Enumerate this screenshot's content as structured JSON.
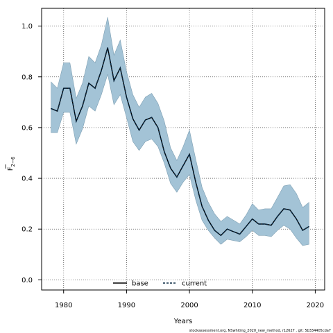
{
  "chart_data": {
    "type": "line",
    "xlabel": "Years",
    "ylabel_main": "F",
    "ylabel_sub": "2−6",
    "xlim": [
      1976.5,
      2021.5
    ],
    "ylim": [
      -0.04,
      1.07
    ],
    "x_ticks": [
      1980,
      1990,
      2000,
      2010,
      2020
    ],
    "y_ticks": [
      0.0,
      0.2,
      0.4,
      0.6,
      0.8,
      1.0
    ],
    "y_tick_labels": [
      "0.0",
      "0.2",
      "0.4",
      "0.6",
      "0.8",
      "1.0"
    ],
    "grid": true,
    "legend_position": "bottom-center",
    "colors": {
      "ci_fill": "#a3c3d6",
      "ci_edge": "#7d9fb3",
      "base_line": "#000000",
      "current_line": "#0a2a44"
    },
    "series": [
      {
        "name": "base",
        "style": "solid",
        "x": [
          1978,
          1979,
          1980,
          1981,
          1982,
          1983,
          1984,
          1985,
          1986,
          1987,
          1988,
          1989,
          1990,
          1991,
          1992,
          1993,
          1994,
          1995,
          1996,
          1997,
          1998,
          1999,
          2000,
          2001,
          2002,
          2003,
          2004,
          2005,
          2006,
          2007,
          2008,
          2009,
          2010,
          2011,
          2012,
          2013,
          2014,
          2015,
          2016,
          2017,
          2018,
          2019
        ],
        "values": [
          0.675,
          0.665,
          0.755,
          0.755,
          0.625,
          0.685,
          0.775,
          0.755,
          0.825,
          0.915,
          0.785,
          0.835,
          0.72,
          0.635,
          0.59,
          0.63,
          0.64,
          0.6,
          0.505,
          0.44,
          0.405,
          0.45,
          0.495,
          0.385,
          0.29,
          0.235,
          0.195,
          0.175,
          0.2,
          0.19,
          0.18,
          0.21,
          0.24,
          0.22,
          0.22,
          0.215,
          0.25,
          0.28,
          0.275,
          0.24,
          0.195,
          0.21
        ]
      },
      {
        "name": "current",
        "style": "dashed",
        "x": [
          1978,
          1979,
          1980,
          1981,
          1982,
          1983,
          1984,
          1985,
          1986,
          1987,
          1988,
          1989,
          1990,
          1991,
          1992,
          1993,
          1994,
          1995,
          1996,
          1997,
          1998,
          1999,
          2000,
          2001,
          2002,
          2003,
          2004,
          2005,
          2006,
          2007,
          2008,
          2009,
          2010,
          2011,
          2012,
          2013,
          2014,
          2015,
          2016,
          2017,
          2018,
          2019
        ],
        "values": [
          0.675,
          0.665,
          0.755,
          0.755,
          0.625,
          0.685,
          0.775,
          0.755,
          0.825,
          0.915,
          0.785,
          0.835,
          0.72,
          0.635,
          0.59,
          0.63,
          0.64,
          0.6,
          0.505,
          0.44,
          0.405,
          0.45,
          0.495,
          0.385,
          0.29,
          0.235,
          0.195,
          0.175,
          0.2,
          0.19,
          0.18,
          0.21,
          0.24,
          0.22,
          0.22,
          0.215,
          0.25,
          0.28,
          0.275,
          0.24,
          0.195,
          0.21
        ],
        "ci_upper": [
          0.78,
          0.755,
          0.855,
          0.855,
          0.715,
          0.775,
          0.88,
          0.855,
          0.925,
          1.035,
          0.885,
          0.945,
          0.82,
          0.73,
          0.68,
          0.72,
          0.735,
          0.695,
          0.625,
          0.52,
          0.47,
          0.525,
          0.59,
          0.475,
          0.365,
          0.305,
          0.26,
          0.23,
          0.25,
          0.235,
          0.22,
          0.255,
          0.3,
          0.275,
          0.28,
          0.28,
          0.325,
          0.37,
          0.375,
          0.34,
          0.285,
          0.305
        ],
        "ci_lower": [
          0.58,
          0.58,
          0.66,
          0.66,
          0.535,
          0.595,
          0.685,
          0.665,
          0.73,
          0.81,
          0.69,
          0.73,
          0.64,
          0.545,
          0.51,
          0.545,
          0.555,
          0.525,
          0.46,
          0.38,
          0.345,
          0.385,
          0.415,
          0.315,
          0.235,
          0.195,
          0.165,
          0.14,
          0.16,
          0.155,
          0.15,
          0.17,
          0.195,
          0.175,
          0.175,
          0.17,
          0.195,
          0.215,
          0.2,
          0.165,
          0.135,
          0.14
        ]
      }
    ],
    "footer": "stockassessment.org,  NSwhiting_2020_new_method,  r12627  ,  git: 5b334405cda7"
  }
}
